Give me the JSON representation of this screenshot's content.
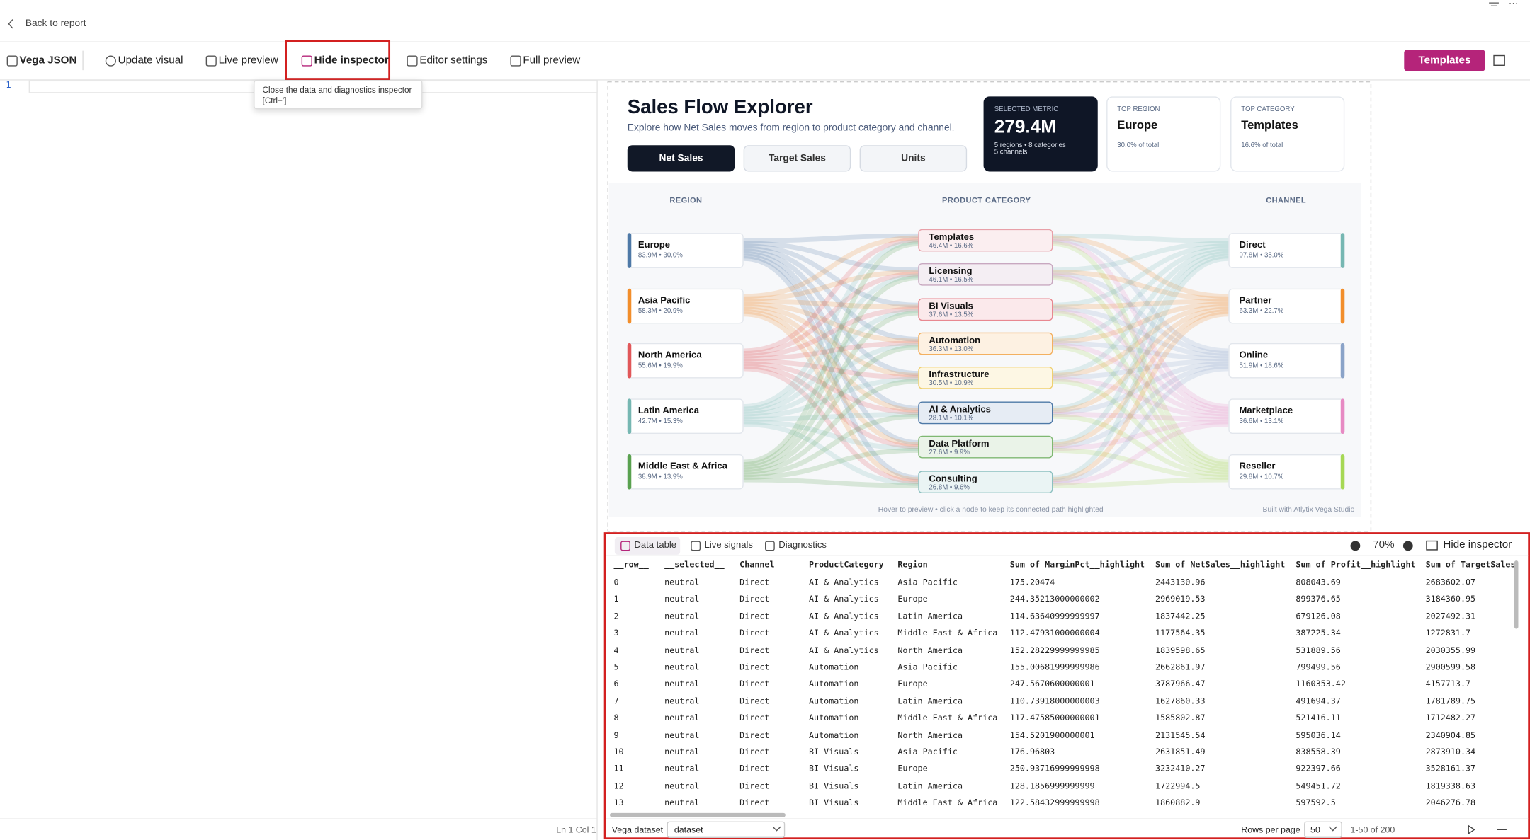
{
  "top_bar": {
    "back_link": "Back to report"
  },
  "toolbar": {
    "items": [
      "Vega JSON",
      "Update visual",
      "Live preview",
      "Hide inspector",
      "Editor settings",
      "Full preview"
    ],
    "templates_button": "Templates"
  },
  "tooltip": {
    "text": "Close the data and diagnostics inspector",
    "shortcut": "[Ctrl+']"
  },
  "editor": {
    "line_numbers": [
      1
    ],
    "status": "Ln 1 Col 1"
  },
  "visual": {
    "title": "Sales Flow Explorer",
    "subtitle": "Explore how Net Sales moves from region to product category and channel.",
    "metric_tabs": [
      "Net Sales",
      "Target Sales",
      "Units"
    ],
    "cards": [
      {
        "label": "SELECTED METRIC",
        "value": "279.4M",
        "details": [
          "5 regions • 8 categories",
          "5 channels"
        ]
      },
      {
        "label": "TOP REGION",
        "value": "Europe",
        "details": [
          "30.0% of total"
        ]
      },
      {
        "label": "TOP CATEGORY",
        "value": "Templates",
        "details": [
          "16.6% of total"
        ]
      }
    ],
    "column_headers": [
      "REGION",
      "PRODUCT CATEGORY",
      "CHANNEL"
    ],
    "regions": [
      {
        "name": "Europe",
        "stats": "83.9M • 30.0%"
      },
      {
        "name": "Asia Pacific",
        "stats": "58.3M • 20.9%"
      },
      {
        "name": "North America",
        "stats": "55.6M • 19.9%"
      },
      {
        "name": "Latin America",
        "stats": "42.7M • 15.3%"
      },
      {
        "name": "Middle East & Africa",
        "stats": "38.9M • 13.9%"
      }
    ],
    "categories": [
      {
        "name": "Templates",
        "stats": "46.4M • 16.6%"
      },
      {
        "name": "Licensing",
        "stats": "46.1M • 16.5%"
      },
      {
        "name": "BI Visuals",
        "stats": "37.6M • 13.5%"
      },
      {
        "name": "Automation",
        "stats": "36.3M • 13.0%"
      },
      {
        "name": "Infrastructure",
        "stats": "30.5M • 10.9%"
      },
      {
        "name": "AI & Analytics",
        "stats": "28.1M • 10.1%"
      },
      {
        "name": "Data Platform",
        "stats": "27.6M • 9.9%"
      },
      {
        "name": "Consulting",
        "stats": "26.8M • 9.6%"
      }
    ],
    "channels": [
      {
        "name": "Direct",
        "stats": "97.8M • 35.0%"
      },
      {
        "name": "Partner",
        "stats": "63.3M • 22.7%"
      },
      {
        "name": "Online",
        "stats": "51.9M • 18.6%"
      },
      {
        "name": "Marketplace",
        "stats": "36.6M • 13.1%"
      },
      {
        "name": "Reseller",
        "stats": "29.8M • 10.7%"
      }
    ],
    "footer_hint": "Hover to preview • click a node to keep its connected path highlighted",
    "footer_credit": "Built with Atlytix Vega Studio"
  },
  "inspector": {
    "tabs": [
      "Data table",
      "Live signals",
      "Diagnostics"
    ],
    "zoom": "70%",
    "hide_button": "Hide inspector",
    "table": {
      "columns": [
        "__row__",
        "__selected__",
        "Channel",
        "ProductCategory",
        "Region",
        "Sum of MarginPct__highlight",
        "Sum of NetSales__highlight",
        "Sum of Profit__highlight",
        "Sum of TargetSales_"
      ],
      "rows": [
        [
          "0",
          "neutral",
          "Direct",
          "AI & Analytics",
          "Asia Pacific",
          "175.20474",
          "2443130.96",
          "808043.69",
          "2683602.07"
        ],
        [
          "1",
          "neutral",
          "Direct",
          "AI & Analytics",
          "Europe",
          "244.35213000000002",
          "2969019.53",
          "899376.65",
          "3184360.95"
        ],
        [
          "2",
          "neutral",
          "Direct",
          "AI & Analytics",
          "Latin America",
          "114.63640999999997",
          "1837442.25",
          "679126.08",
          "2027492.31"
        ],
        [
          "3",
          "neutral",
          "Direct",
          "AI & Analytics",
          "Middle East & Africa",
          "112.47931000000004",
          "1177564.35",
          "387225.34",
          "1272831.7"
        ],
        [
          "4",
          "neutral",
          "Direct",
          "AI & Analytics",
          "North America",
          "152.28229999999985",
          "1839598.65",
          "531889.56",
          "2030355.99"
        ],
        [
          "5",
          "neutral",
          "Direct",
          "Automation",
          "Asia Pacific",
          "155.00681999999986",
          "2662861.97",
          "799499.56",
          "2900599.58"
        ],
        [
          "6",
          "neutral",
          "Direct",
          "Automation",
          "Europe",
          "247.5670600000001",
          "3787966.47",
          "1160353.42",
          "4157713.7"
        ],
        [
          "7",
          "neutral",
          "Direct",
          "Automation",
          "Latin America",
          "110.73918000000003",
          "1627860.33",
          "491694.37",
          "1781789.75"
        ],
        [
          "8",
          "neutral",
          "Direct",
          "Automation",
          "Middle East & Africa",
          "117.47585000000001",
          "1585802.87",
          "521416.11",
          "1712482.27"
        ],
        [
          "9",
          "neutral",
          "Direct",
          "Automation",
          "North America",
          "154.5201900000001",
          "2131545.54",
          "595036.14",
          "2340904.85"
        ],
        [
          "10",
          "neutral",
          "Direct",
          "BI Visuals",
          "Asia Pacific",
          "176.96803",
          "2631851.49",
          "838558.39",
          "2873910.34"
        ],
        [
          "11",
          "neutral",
          "Direct",
          "BI Visuals",
          "Europe",
          "250.93716999999998",
          "3232410.27",
          "922397.66",
          "3528161.37"
        ],
        [
          "12",
          "neutral",
          "Direct",
          "BI Visuals",
          "Latin America",
          "128.1856999999999",
          "1722994.5",
          "549451.72",
          "1819338.63"
        ],
        [
          "13",
          "neutral",
          "Direct",
          "BI Visuals",
          "Middle East & Africa",
          "122.58432999999998",
          "1860882.9",
          "597592.5",
          "2046276.78"
        ]
      ]
    },
    "footer": {
      "dataset_label": "Vega dataset",
      "dataset_value": "dataset",
      "rows_per_page_label": "Rows per page",
      "rows_per_page": "50",
      "range": "1-50 of 200"
    }
  }
}
